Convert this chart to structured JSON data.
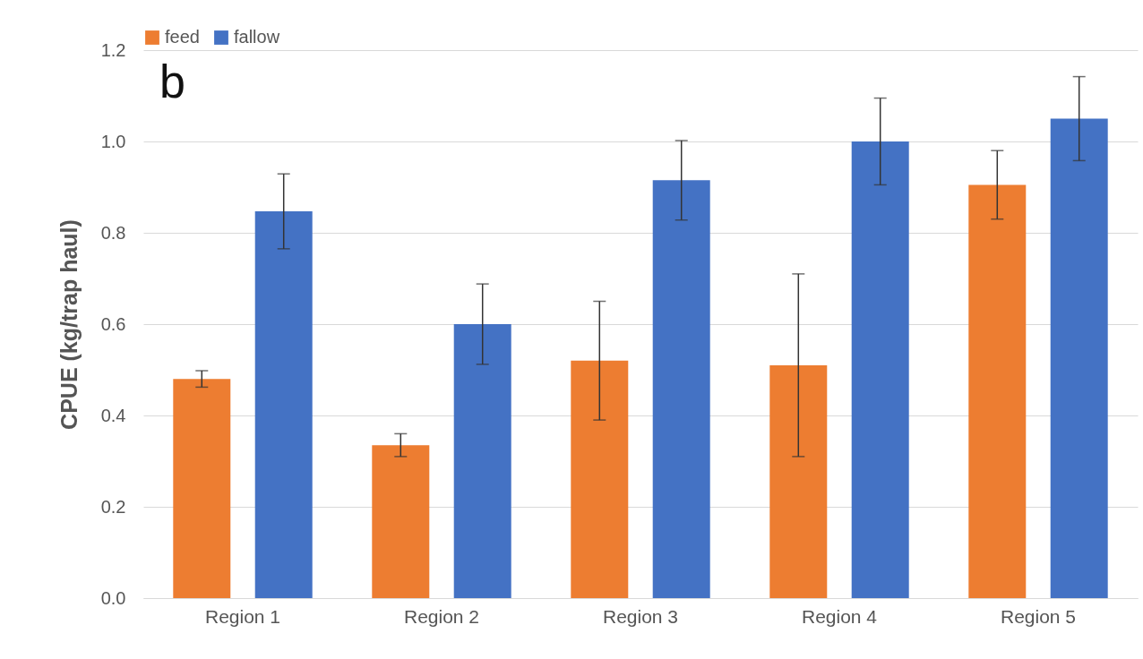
{
  "chart_data": {
    "type": "bar",
    "ylabel": "CPUE (kg/trap haul)",
    "annotations": [
      "b"
    ],
    "categories": [
      "Region 1",
      "Region 2",
      "Region 3",
      "Region 4",
      "Region 5"
    ],
    "series": [
      {
        "name": "feed",
        "color": "#ed7d31",
        "values": [
          0.48,
          0.335,
          0.52,
          0.51,
          0.905
        ],
        "errors": [
          0.018,
          0.025,
          0.13,
          0.2,
          0.075
        ]
      },
      {
        "name": "fallow",
        "color": "#4472c4",
        "values": [
          0.847,
          0.6,
          0.915,
          1.0,
          1.05
        ],
        "errors": [
          0.082,
          0.088,
          0.087,
          0.095,
          0.092
        ]
      }
    ],
    "ylim": [
      0,
      1.2
    ],
    "yticks": [
      {
        "value": 0,
        "label": "0.0"
      },
      {
        "value": 0.2,
        "label": "0.2"
      },
      {
        "value": 0.4,
        "label": "0.4"
      },
      {
        "value": 0.6,
        "label": "0.6"
      },
      {
        "value": 0.8,
        "label": "0.8"
      },
      {
        "value": 1,
        "label": "1.0"
      },
      {
        "value": 1.2,
        "label": "1.2"
      }
    ],
    "grid": "y",
    "legend": "top"
  }
}
